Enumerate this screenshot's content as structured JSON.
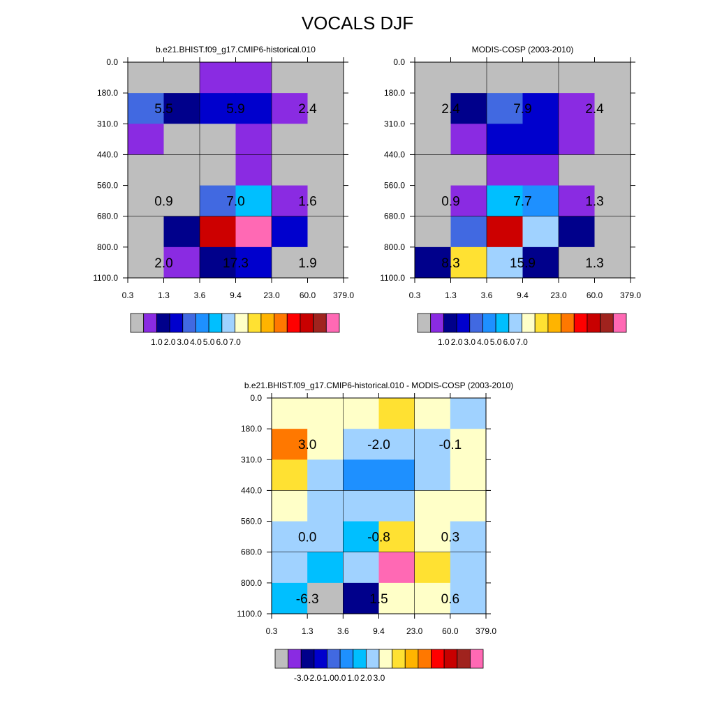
{
  "title": "VOCALS DJF",
  "colors": {
    "missing": "#bebebe",
    "grid_line": "#000000"
  },
  "chart_data": [
    {
      "type": "heatmap",
      "id": "model",
      "title": "b.e21.BHIST.f09_g17.CMIP6-historical.010",
      "xticks": [
        "0.3",
        "1.3",
        "3.6",
        "9.4",
        "23.0",
        "60.0",
        "379.0"
      ],
      "yticks": [
        "0.0",
        "180.0",
        "310.0",
        "440.0",
        "560.0",
        "680.0",
        "800.0",
        "1100.0"
      ],
      "cell_colors": [
        [
          "#bebebe",
          "#bebebe",
          "#8a2be2",
          "#8a2be2",
          "#bebebe",
          "#bebebe"
        ],
        [
          "#4169e1",
          "#00008b",
          "#0000cd",
          "#0000cd",
          "#8a2be2",
          "#bebebe"
        ],
        [
          "#8a2be2",
          "#bebebe",
          "#bebebe",
          "#8a2be2",
          "#bebebe",
          "#bebebe"
        ],
        [
          "#bebebe",
          "#bebebe",
          "#bebebe",
          "#8a2be2",
          "#bebebe",
          "#bebebe"
        ],
        [
          "#bebebe",
          "#bebebe",
          "#4169e1",
          "#00bfff",
          "#8a2be2",
          "#bebebe"
        ],
        [
          "#bebebe",
          "#00008b",
          "#cd0000",
          "#ff69b4",
          "#0000cd",
          "#bebebe"
        ],
        [
          "#bebebe",
          "#8a2be2",
          "#00008b",
          "#0000cd",
          "#bebebe",
          "#bebebe"
        ]
      ],
      "annotations": [
        {
          "value": "5.5",
          "row": 1,
          "col": 1
        },
        {
          "value": "5.9",
          "row": 1,
          "col": 3
        },
        {
          "value": "2.4",
          "row": 1,
          "col": 5
        },
        {
          "value": "0.9",
          "row": 4,
          "col": 1
        },
        {
          "value": "7.0",
          "row": 4,
          "col": 3
        },
        {
          "value": "1.6",
          "row": 4,
          "col": 5
        },
        {
          "value": "2.0",
          "row": 6,
          "col": 1
        },
        {
          "value": "17.3",
          "row": 6,
          "col": 3
        },
        {
          "value": "1.9",
          "row": 6,
          "col": 5
        }
      ],
      "colorbar": {
        "colors": [
          "#bebebe",
          "#8a2be2",
          "#00008b",
          "#0000cd",
          "#4169e1",
          "#1e90ff",
          "#00bfff",
          "#a0d2ff",
          "#ffffc8",
          "#ffe132",
          "#ffb400",
          "#ff7800",
          "#ff0000",
          "#c80000",
          "#a0231e",
          "#ff69b4"
        ],
        "labels": [
          "1.0",
          "2.0",
          "3.0",
          "4.0",
          "5.0",
          "6.0",
          "7.0"
        ],
        "label_start_boundary": 2
      }
    },
    {
      "type": "heatmap",
      "id": "obs",
      "title": "MODIS-COSP (2003-2010)",
      "xticks": [
        "0.3",
        "1.3",
        "3.6",
        "9.4",
        "23.0",
        "60.0",
        "379.0"
      ],
      "yticks": [
        "0.0",
        "180.0",
        "310.0",
        "440.0",
        "560.0",
        "680.0",
        "800.0",
        "1100.0"
      ],
      "cell_colors": [
        [
          "#bebebe",
          "#bebebe",
          "#bebebe",
          "#bebebe",
          "#bebebe",
          "#bebebe"
        ],
        [
          "#bebebe",
          "#00008b",
          "#4169e1",
          "#0000cd",
          "#8a2be2",
          "#bebebe"
        ],
        [
          "#bebebe",
          "#8a2be2",
          "#0000cd",
          "#0000cd",
          "#8a2be2",
          "#bebebe"
        ],
        [
          "#bebebe",
          "#bebebe",
          "#8a2be2",
          "#8a2be2",
          "#bebebe",
          "#bebebe"
        ],
        [
          "#bebebe",
          "#8a2be2",
          "#00bfff",
          "#1e90ff",
          "#8a2be2",
          "#bebebe"
        ],
        [
          "#bebebe",
          "#4169e1",
          "#cd0000",
          "#a0d2ff",
          "#00008b",
          "#bebebe"
        ],
        [
          "#00008b",
          "#ffe132",
          "#a0d2ff",
          "#00008b",
          "#bebebe",
          "#bebebe"
        ]
      ],
      "annotations": [
        {
          "value": "2.4",
          "row": 1,
          "col": 1
        },
        {
          "value": "7.9",
          "row": 1,
          "col": 3
        },
        {
          "value": "2.4",
          "row": 1,
          "col": 5
        },
        {
          "value": "0.9",
          "row": 4,
          "col": 1
        },
        {
          "value": "7.7",
          "row": 4,
          "col": 3
        },
        {
          "value": "1.3",
          "row": 4,
          "col": 5
        },
        {
          "value": "8.3",
          "row": 6,
          "col": 1
        },
        {
          "value": "15.9",
          "row": 6,
          "col": 3
        },
        {
          "value": "1.3",
          "row": 6,
          "col": 5
        }
      ],
      "colorbar": {
        "colors": [
          "#bebebe",
          "#8a2be2",
          "#00008b",
          "#0000cd",
          "#4169e1",
          "#1e90ff",
          "#00bfff",
          "#a0d2ff",
          "#ffffc8",
          "#ffe132",
          "#ffb400",
          "#ff7800",
          "#ff0000",
          "#c80000",
          "#a0231e",
          "#ff69b4"
        ],
        "labels": [
          "1.0",
          "2.0",
          "3.0",
          "4.0",
          "5.0",
          "6.0",
          "7.0"
        ],
        "label_start_boundary": 2
      }
    },
    {
      "type": "heatmap",
      "id": "diff",
      "title": "b.e21.BHIST.f09_g17.CMIP6-historical.010 - MODIS-COSP (2003-2010)",
      "xticks": [
        "0.3",
        "1.3",
        "3.6",
        "9.4",
        "23.0",
        "60.0",
        "379.0"
      ],
      "yticks": [
        "0.0",
        "180.0",
        "310.0",
        "440.0",
        "560.0",
        "680.0",
        "800.0",
        "1100.0"
      ],
      "cell_colors": [
        [
          "#ffffc8",
          "#ffffc8",
          "#ffffc8",
          "#ffe132",
          "#ffffc8",
          "#a0d2ff"
        ],
        [
          "#ff7800",
          "#ffffc8",
          "#a0d2ff",
          "#a0d2ff",
          "#a0d2ff",
          "#ffffc8"
        ],
        [
          "#ffe132",
          "#a0d2ff",
          "#1e90ff",
          "#1e90ff",
          "#a0d2ff",
          "#ffffc8"
        ],
        [
          "#ffffc8",
          "#a0d2ff",
          "#a0d2ff",
          "#a0d2ff",
          "#ffffc8",
          "#ffffc8"
        ],
        [
          "#a0d2ff",
          "#a0d2ff",
          "#00bfff",
          "#ffe132",
          "#ffffc8",
          "#a0d2ff"
        ],
        [
          "#a0d2ff",
          "#00bfff",
          "#a0d2ff",
          "#ff69b4",
          "#ffe132",
          "#a0d2ff"
        ],
        [
          "#00bfff",
          "#bebebe",
          "#00008b",
          "#ffffc8",
          "#ffffc8",
          "#a0d2ff"
        ]
      ],
      "annotations": [
        {
          "value": "3.0",
          "row": 1,
          "col": 1
        },
        {
          "value": "-2.0",
          "row": 1,
          "col": 3
        },
        {
          "value": "-0.1",
          "row": 1,
          "col": 5
        },
        {
          "value": "0.0",
          "row": 4,
          "col": 1
        },
        {
          "value": "-0.8",
          "row": 4,
          "col": 3
        },
        {
          "value": "0.3",
          "row": 4,
          "col": 5
        },
        {
          "value": "-6.3",
          "row": 6,
          "col": 1
        },
        {
          "value": "1.5",
          "row": 6,
          "col": 3
        },
        {
          "value": "0.6",
          "row": 6,
          "col": 5
        }
      ],
      "colorbar": {
        "colors": [
          "#bebebe",
          "#8a2be2",
          "#00008b",
          "#0000cd",
          "#4169e1",
          "#1e90ff",
          "#00bfff",
          "#a0d2ff",
          "#ffffc8",
          "#ffe132",
          "#ffb400",
          "#ff7800",
          "#ff0000",
          "#c80000",
          "#a0231e",
          "#ff69b4"
        ],
        "labels": [
          "-3.0",
          "-2.0",
          "-1.0",
          "0.0",
          "1.0",
          "2.0",
          "3.0"
        ],
        "label_start_boundary": 2
      }
    }
  ]
}
